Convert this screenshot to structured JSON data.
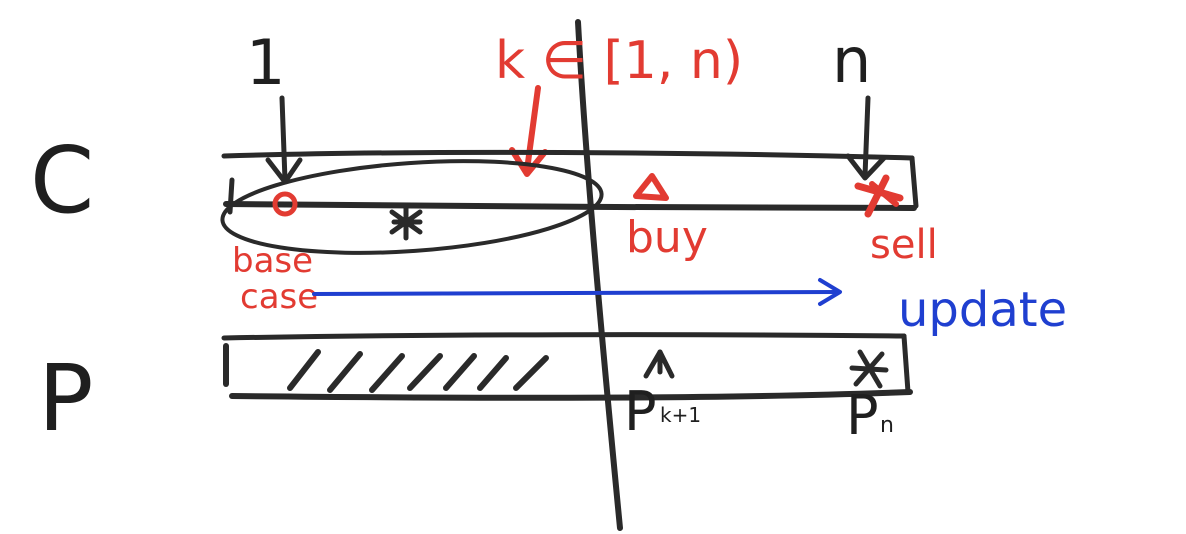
{
  "rows": {
    "c_label": "C",
    "p_label": "P"
  },
  "markers": {
    "first_index": "1",
    "split_index": "k ∈ [1, n)",
    "last_index": "n"
  },
  "annotations": {
    "base_case_line1": "base",
    "base_case_line2": "case",
    "buy": "buy",
    "sell": "sell",
    "update": "update"
  },
  "p_labels": {
    "p_k_base": "P",
    "p_k_sub": "k+1",
    "p_n_base": "P",
    "p_n_sub": "n"
  },
  "colors": {
    "black_ink": "#2a2a2a",
    "red_ink": "#e23b32",
    "blue_ink": "#1f3fd0"
  }
}
